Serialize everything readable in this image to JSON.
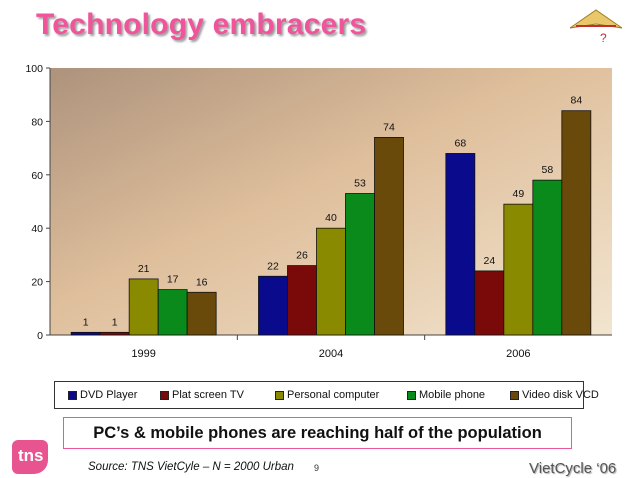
{
  "title": "Technology embracers",
  "caption": "PC’s & mobile phones are reaching half of the population",
  "source": "Source: TNS VietCyle – N = 2000 Urban",
  "page_number": "9",
  "brand": "VietCycle ‘06",
  "tns_logo_text": "tns",
  "colors": {
    "title": "#f0549a",
    "caption_border": "#e8589a",
    "tns_logo": "#e8548f"
  },
  "chart_data": {
    "type": "bar",
    "title": "",
    "xlabel": "",
    "ylabel": "",
    "ylim": [
      0,
      100
    ],
    "yticks": [
      0,
      20,
      40,
      60,
      80,
      100
    ],
    "grid": false,
    "legend_position": "bottom",
    "categories": [
      "1999",
      "2004",
      "2006"
    ],
    "series": [
      {
        "name": "DVD Player",
        "color": "#0a0a8c",
        "values": [
          1,
          22,
          68
        ]
      },
      {
        "name": "Plat screen TV",
        "color": "#7a0a0a",
        "values": [
          1,
          26,
          24
        ]
      },
      {
        "name": "Personal computer",
        "color": "#8a8a00",
        "values": [
          21,
          40,
          49
        ]
      },
      {
        "name": "Mobile phone",
        "color": "#0a8a1a",
        "values": [
          17,
          53,
          58
        ]
      },
      {
        "name": "Video disk VCD",
        "color": "#6a4a0a",
        "values": [
          16,
          74,
          84
        ]
      }
    ]
  }
}
